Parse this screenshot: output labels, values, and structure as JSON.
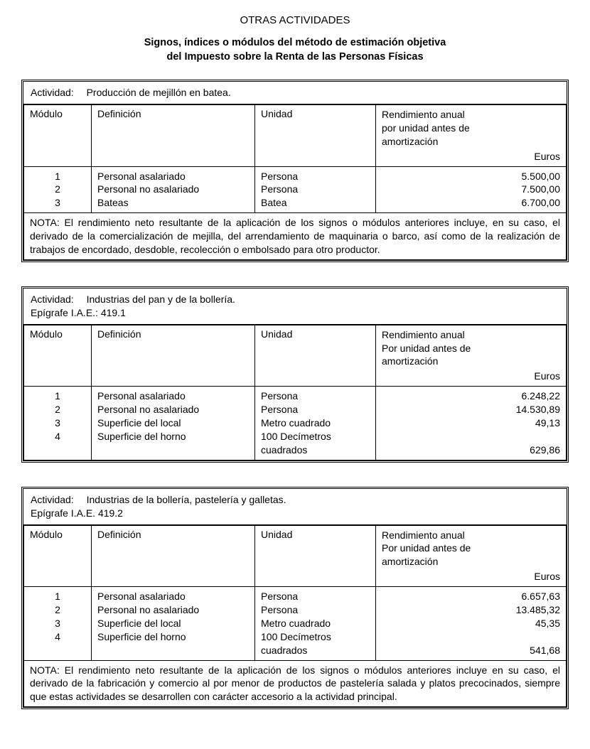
{
  "title": "OTRAS ACTIVIDADES",
  "subtitle_line1": "Signos, índices o módulos del método de estimación objetiva",
  "subtitle_line2": "del Impuesto sobre la Renta de las Personas Físicas",
  "labels": {
    "actividad": "Actividad:",
    "epigrafe": "Epígrafe I.A.E.:",
    "col_modulo": "Módulo",
    "col_definicion": "Definición",
    "col_unidad": "Unidad",
    "col_rend_line1": "Rendimiento anual",
    "col_rend_line2_a": "por unidad antes de",
    "col_rend_line2_b": "Por unidad antes de",
    "col_rend_line3": "amortización",
    "currency": "Euros",
    "nota_prefix": "NOTA:"
  },
  "activities": [
    {
      "name": "Producción de mejillón en batea.",
      "epigrafe": "",
      "rend_line2_variant": "a",
      "rows": [
        {
          "n": "1",
          "def": "Personal asalariado",
          "unidad": "Persona",
          "valor": "5.500,00"
        },
        {
          "n": "2",
          "def": "Personal no asalariado",
          "unidad": "Persona",
          "valor": "7.500,00"
        },
        {
          "n": "3",
          "def": "Bateas",
          "unidad": "Batea",
          "valor": "6.700,00"
        }
      ],
      "nota": "El rendimiento neto resultante de la aplicación de los signos o módulos anteriores incluye, en su caso, el derivado de la comercialización de mejilla, del arrendamiento de maquinaria o barco, así como de la realización de trabajos de encordado, desdoble, recolección o embolsado para otro productor."
    },
    {
      "name": "Industrias del pan y de la bollería.",
      "epigrafe": "419.1",
      "rend_line2_variant": "b",
      "rows": [
        {
          "n": "1",
          "def": "Personal asalariado",
          "unidad": "Persona",
          "valor": "6.248,22"
        },
        {
          "n": "2",
          "def": "Personal no asalariado",
          "unidad": "Persona",
          "valor": "14.530,89"
        },
        {
          "n": "3",
          "def": "Superficie del local",
          "unidad": "Metro cuadrado",
          "valor": "49,13"
        },
        {
          "n": "4",
          "def": "Superficie del horno",
          "unidad": "100 Decímetros cuadrados",
          "valor": "629,86",
          "valor_blank_above": true
        }
      ],
      "nota": ""
    },
    {
      "name": "Industrias de la bollería, pastelería y galletas.",
      "epigrafe": "419.2",
      "epigrafe_nocolon": true,
      "rend_line2_variant": "b",
      "rows": [
        {
          "n": "1",
          "def": "Personal asalariado",
          "unidad": "Persona",
          "valor": "6.657,63"
        },
        {
          "n": "2",
          "def": "Personal no asalariado",
          "unidad": "Persona",
          "valor": "13.485,32"
        },
        {
          "n": "3",
          "def": "Superficie del local",
          "unidad": "Metro cuadrado",
          "valor": "45,35"
        },
        {
          "n": "4",
          "def": "Superficie del horno",
          "unidad": "100 Decímetros cuadrados",
          "valor": "541,68",
          "valor_blank_above": true
        }
      ],
      "nota": "El rendimiento neto resultante de la aplicación de los signos o módulos anteriores incluye en su caso, el derivado de la fabricación y comercio al por menor de productos de pastelería salada y platos precocinados, siempre que estas actividades se desarrollen con carácter accesorio a la actividad principal."
    }
  ]
}
